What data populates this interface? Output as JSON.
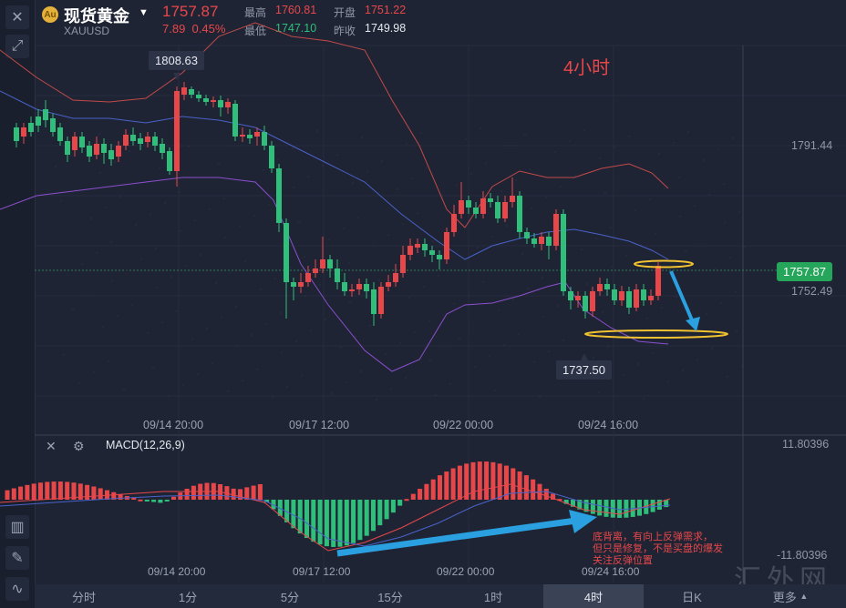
{
  "header": {
    "title": "现货黄金",
    "symbol": "XAUUSD",
    "price": "1757.87",
    "change": "7.89",
    "change_pct": "0.45%",
    "stats": {
      "high_label": "最高",
      "high_value": "1760.81",
      "open_label": "开盘",
      "open_value": "1751.22",
      "low_label": "最低",
      "low_value": "1747.10",
      "prev_label": "昨收",
      "prev_value": "1749.98"
    }
  },
  "chart": {
    "annotation": "4小时",
    "max_label": "1808.63",
    "min_label": "1737.50",
    "right_labels": {
      "upper": "1791.44",
      "current": "1757.87",
      "lower": "1752.49"
    },
    "x_labels": [
      "09/14 20:00",
      "09/17 12:00",
      "09/22 00:00",
      "09/24 16:00"
    ],
    "colors": {
      "up": "#e8474a",
      "down": "#2fbf7a",
      "boll_upper": "#c24a4a",
      "boll_mid": "#4a62c9",
      "boll_lower": "#8c4fcf",
      "highlight": "#f2c230",
      "arrow": "#2aa0e0"
    }
  },
  "macd": {
    "label": "MACD(12,26,9)",
    "top": "11.80396",
    "bottom": "-11.80396",
    "x_labels": [
      "09/14 20:00",
      "09/17 12:00",
      "09/22 00:00",
      "09/24 16:00"
    ],
    "note": [
      "底背离，有向上反弹需求，",
      "但只是修复，不是买盘的爆发",
      "关注反弹位置"
    ]
  },
  "tabs": [
    "分时",
    "1分",
    "5分",
    "15分",
    "1时",
    "4时",
    "日K",
    "更多"
  ],
  "active_tab": "4时",
  "watermark": "汇外网",
  "icons": {
    "close": "close-icon",
    "expand": "expand-icon",
    "settings": "gear-icon",
    "candles": "candlestick-icon",
    "pen": "pen-icon",
    "indicator": "indicator-icon"
  }
}
